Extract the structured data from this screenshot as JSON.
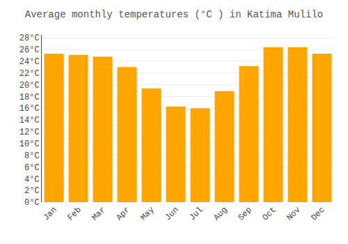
{
  "chart_data": {
    "type": "bar",
    "title": "Average monthly temperatures (°C ) in Katima Mulilo",
    "categories": [
      "Jan",
      "Feb",
      "Mar",
      "Apr",
      "May",
      "Jun",
      "Jul",
      "Aug",
      "Sep",
      "Oct",
      "Nov",
      "Dec"
    ],
    "values": [
      25.3,
      25.1,
      24.8,
      23.0,
      19.4,
      16.3,
      16.0,
      18.9,
      23.2,
      26.4,
      26.4,
      25.3
    ],
    "color": "#FFA500",
    "ylim": [
      0,
      28.5
    ],
    "yticks": [
      {
        "value": 0,
        "label": "0°C"
      },
      {
        "value": 2,
        "label": "2°C"
      },
      {
        "value": 4,
        "label": "4°C"
      },
      {
        "value": 6,
        "label": "6°C"
      },
      {
        "value": 8,
        "label": "8°C"
      },
      {
        "value": 10,
        "label": "10°C"
      },
      {
        "value": 12,
        "label": "12°C"
      },
      {
        "value": 14,
        "label": "14°C"
      },
      {
        "value": 16,
        "label": "16°C"
      },
      {
        "value": 18,
        "label": "18°C"
      },
      {
        "value": 20,
        "label": "20°C"
      },
      {
        "value": 22,
        "label": "22°C"
      },
      {
        "value": 24,
        "label": "24°C"
      },
      {
        "value": 26,
        "label": "26°C"
      },
      {
        "value": 28,
        "label": "28°C"
      }
    ],
    "grid": true
  }
}
